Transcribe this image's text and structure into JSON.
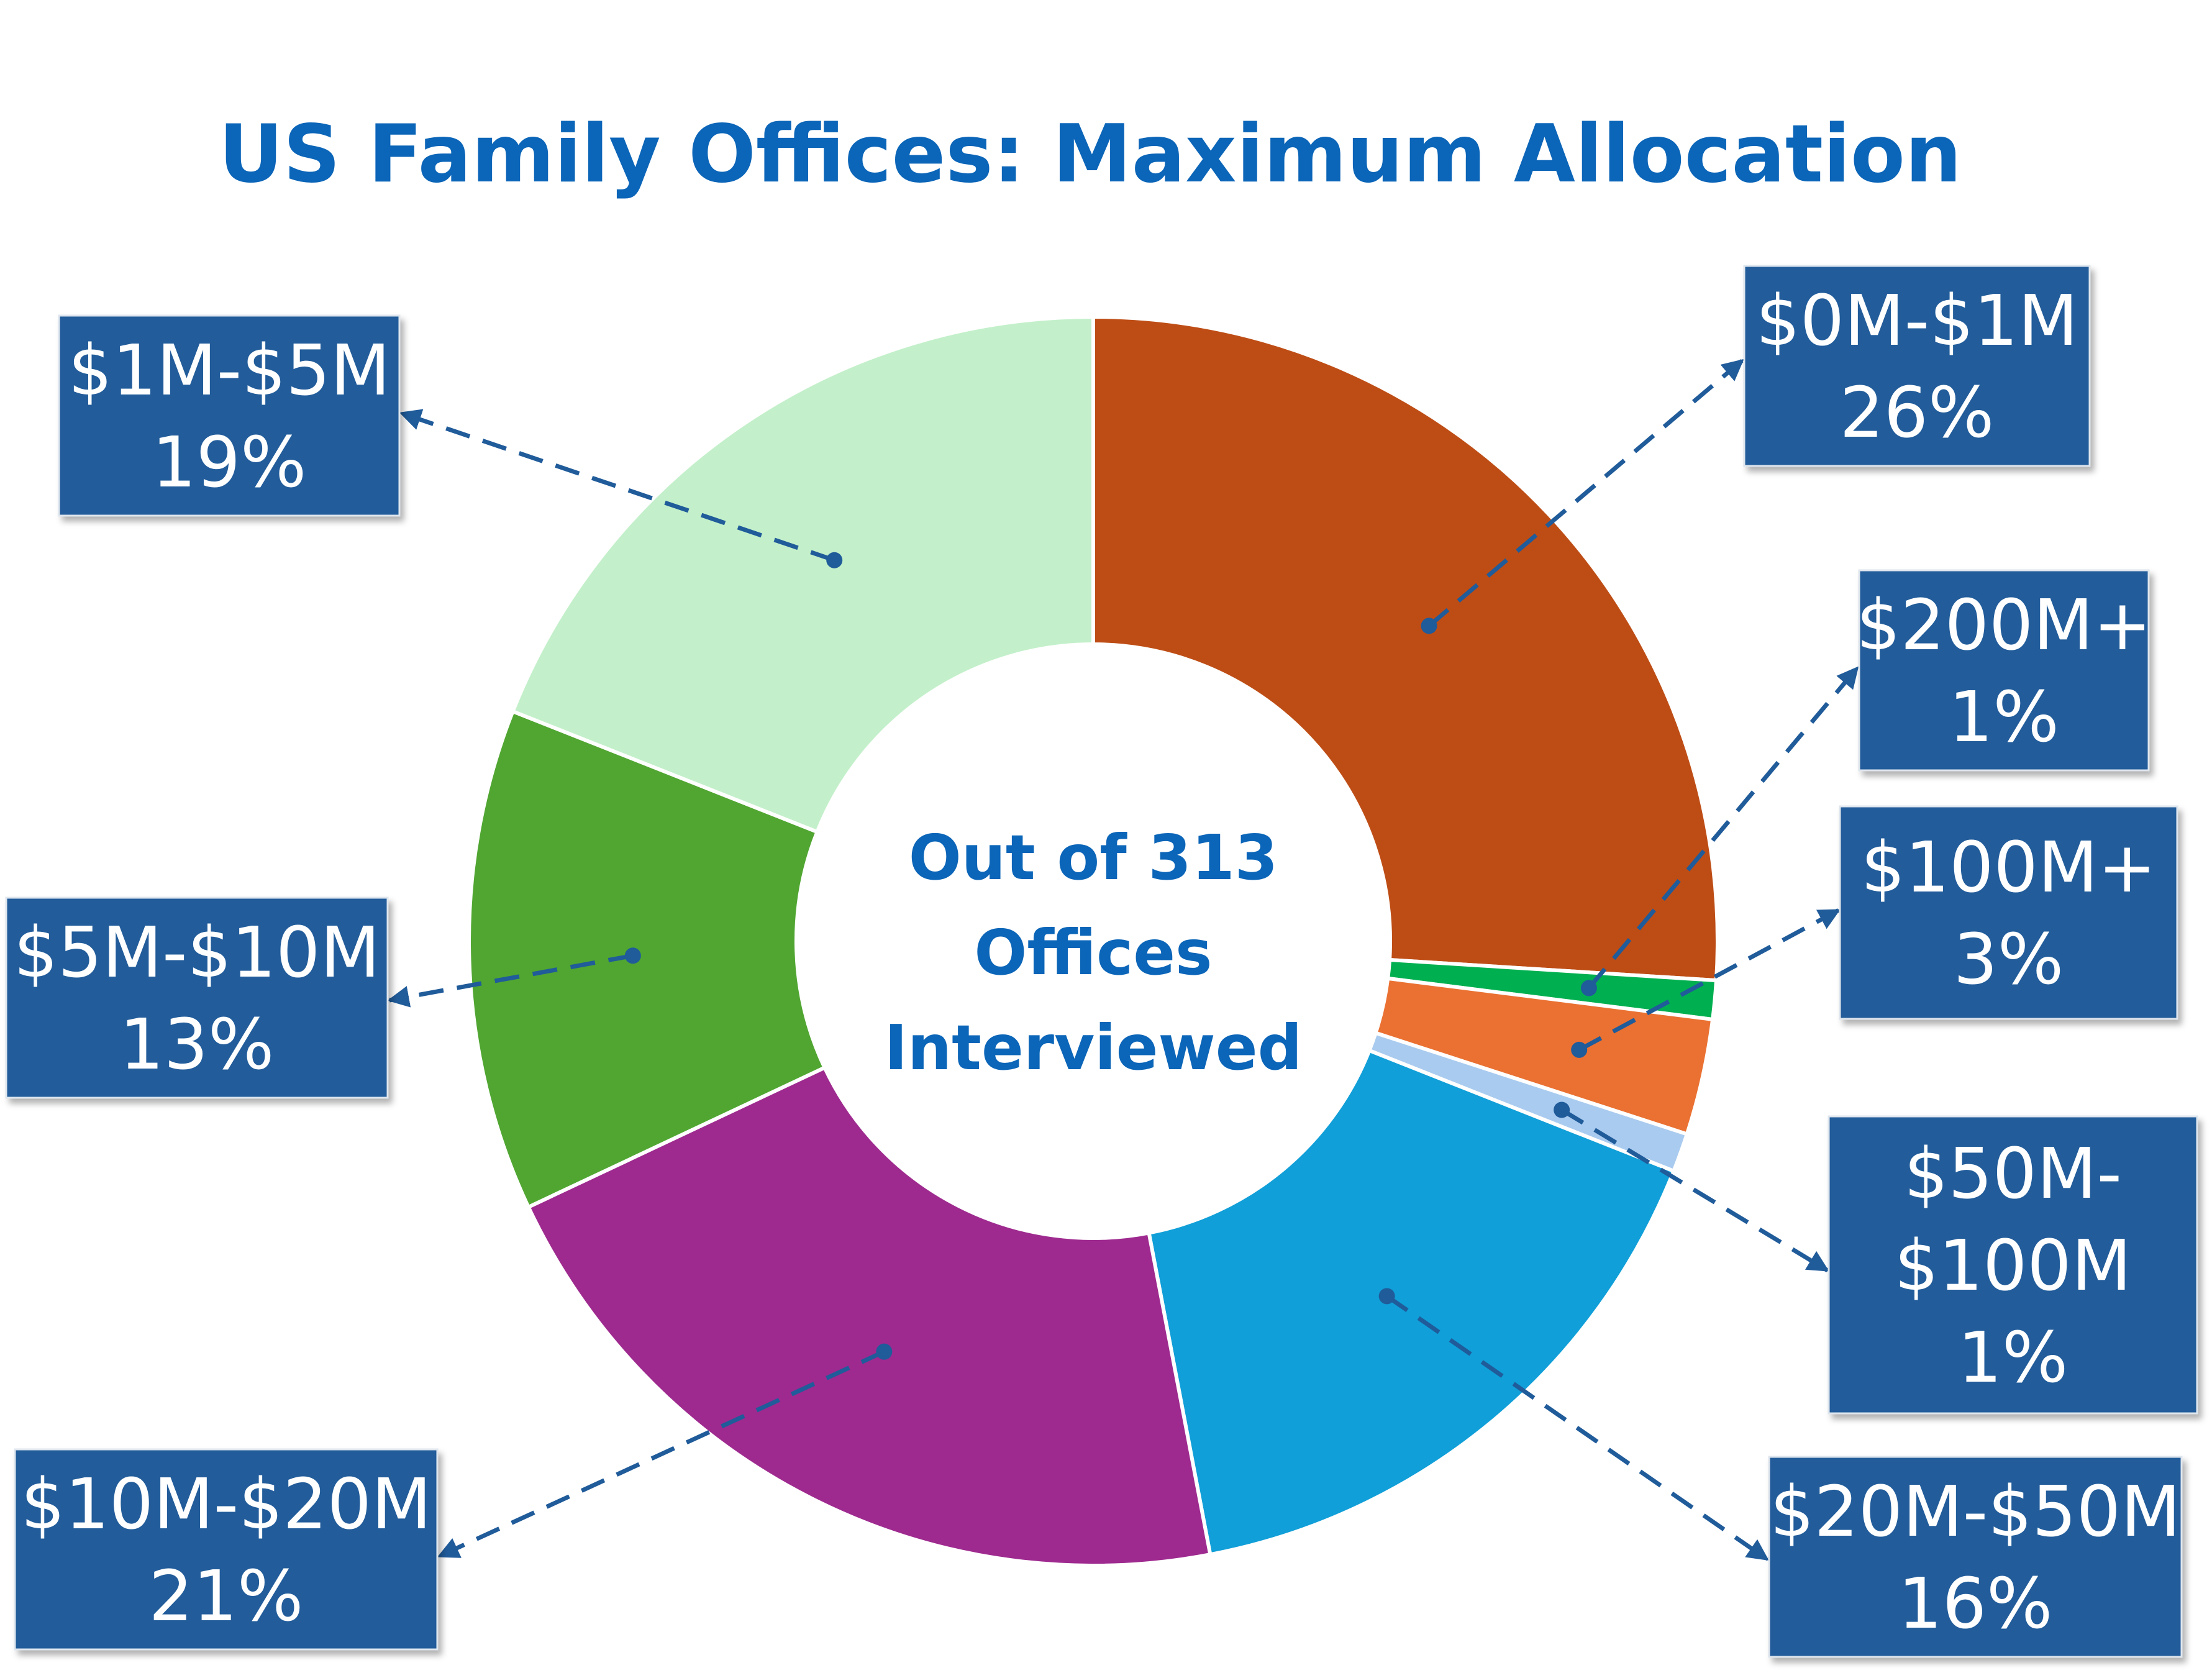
{
  "chart_data": {
    "type": "pie",
    "donut": true,
    "title": "US Family Offices: Maximum Allocation",
    "center_text": [
      "Out of 313",
      "Offices",
      "Interviewed"
    ],
    "slices": [
      {
        "label": "$0M-$1M",
        "label_lines": [
          "$0M-$1M"
        ],
        "percent": 26,
        "color": "#be4d15"
      },
      {
        "label": "$200M+",
        "label_lines": [
          "$200M+"
        ],
        "percent": 1,
        "color": "#00b050"
      },
      {
        "label": "$100M+",
        "label_lines": [
          "$100M+"
        ],
        "percent": 3,
        "color": "#ea7132"
      },
      {
        "label": "$50M-$100M",
        "label_lines": [
          "$50M-",
          "$100M"
        ],
        "percent": 1,
        "color": "#a9cbef"
      },
      {
        "label": "$20M-$50M",
        "label_lines": [
          "$20M-$50M"
        ],
        "percent": 16,
        "color": "#109fd8"
      },
      {
        "label": "$10M-$20M",
        "label_lines": [
          "$10M-$20M"
        ],
        "percent": 21,
        "color": "#9e2a8f"
      },
      {
        "label": "$5M-$10M",
        "label_lines": [
          "$5M-$10M"
        ],
        "percent": 13,
        "color": "#50a631"
      },
      {
        "label": "$1M-$5M",
        "label_lines": [
          "$1M-$5M"
        ],
        "percent": 19,
        "color": "#c3f0ca"
      }
    ],
    "label_box_color": "#205b9a",
    "leader_color": "#205b9a"
  }
}
